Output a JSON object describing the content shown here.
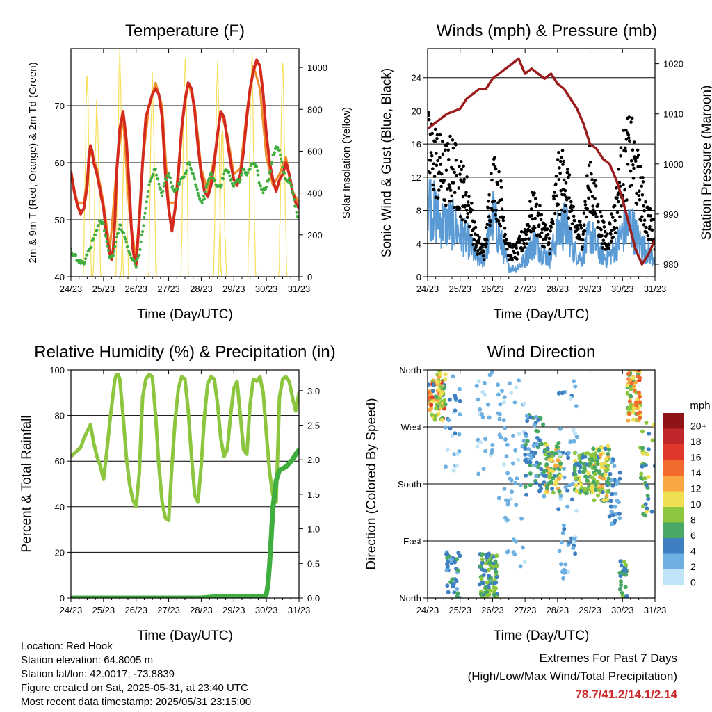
{
  "x_ticks": [
    "24/23",
    "25/23",
    "26/23",
    "27/23",
    "28/23",
    "29/23",
    "30/23",
    "31/23"
  ],
  "colors": {
    "red": "#d42a1e",
    "orange": "#f08a2a",
    "green": "#3fae3f",
    "yellow": "#f7df5a",
    "blue": "#5b9bd5",
    "black": "#000000",
    "maroon": "#9b1c1c",
    "rh_green": "#8cc63f",
    "precip_green": "#3fae3f"
  },
  "chart_data": [
    {
      "type": "line",
      "title": "Temperature (F)",
      "xlabel": "Time (Day/UTC)",
      "ylabel": "2m & 9m T (Red, Orange) & 2m Td (Green)",
      "ylabel_right": "Solar Insolation (Yellow)",
      "xlim": [
        0,
        7
      ],
      "ylim": [
        40,
        80
      ],
      "ylim_right": [
        0,
        1090
      ],
      "yticks": [
        40,
        50,
        60,
        70
      ],
      "yticks_right": [
        0,
        200,
        400,
        600,
        800,
        1000
      ],
      "series": [
        {
          "key": "t2m",
          "color": "red",
          "width": 4,
          "x": [
            0,
            0.1,
            0.2,
            0.3,
            0.4,
            0.5,
            0.55,
            0.6,
            0.65,
            0.7,
            0.8,
            0.9,
            1.0,
            1.1,
            1.2,
            1.25,
            1.3,
            1.35,
            1.4,
            1.5,
            1.6,
            1.7,
            1.8,
            1.85,
            1.9,
            1.95,
            2.0,
            2.1,
            2.2,
            2.3,
            2.4,
            2.5,
            2.6,
            2.7,
            2.8,
            2.9,
            3.0,
            3.1,
            3.2,
            3.3,
            3.4,
            3.5,
            3.6,
            3.7,
            3.8,
            3.9,
            4.0,
            4.1,
            4.2,
            4.3,
            4.4,
            4.5,
            4.6,
            4.7,
            4.8,
            4.9,
            5.0,
            5.1,
            5.2,
            5.3,
            5.4,
            5.5,
            5.6,
            5.7,
            5.8,
            5.9,
            6.0,
            6.1,
            6.2,
            6.3,
            6.4,
            6.5,
            6.6,
            6.7,
            6.8,
            6.9,
            7.0
          ],
          "y": [
            58.5,
            55,
            52.5,
            51,
            52,
            56,
            61,
            63,
            62,
            60,
            58,
            55,
            52,
            47,
            44,
            43,
            45,
            50,
            58,
            66,
            69,
            64,
            55,
            49,
            45,
            43,
            42,
            50,
            60,
            68,
            70,
            72,
            73,
            72,
            68,
            58,
            52,
            48,
            52,
            58,
            66,
            71,
            74,
            73,
            69,
            63,
            58,
            55,
            54,
            56,
            60,
            65,
            69,
            68,
            64,
            60,
            57,
            56,
            58,
            62,
            68,
            73,
            76,
            78,
            77,
            72,
            65,
            60,
            57,
            55,
            57,
            58,
            60,
            58,
            55,
            53,
            52
          ]
        },
        {
          "key": "t9m",
          "color": "orange",
          "width": 3,
          "x": [
            0,
            0.2,
            0.4,
            0.6,
            0.8,
            1.0,
            1.2,
            1.4,
            1.6,
            1.8,
            2.0,
            2.2,
            2.4,
            2.6,
            2.8,
            3.0,
            3.2,
            3.4,
            3.6,
            3.8,
            4.0,
            4.2,
            4.4,
            4.6,
            4.8,
            5.0,
            5.2,
            5.4,
            5.6,
            5.8,
            6.0,
            6.2,
            6.4,
            6.6,
            6.8,
            7.0
          ],
          "y": [
            58,
            53,
            53,
            62,
            59,
            53,
            45,
            59,
            68,
            51,
            43,
            60,
            70,
            74,
            70,
            53,
            53,
            66,
            74,
            70,
            59,
            55,
            61,
            69,
            65,
            58,
            59,
            69,
            77,
            73,
            61,
            56,
            58,
            61,
            55,
            53
          ]
        },
        {
          "key": "td2m",
          "color": "green",
          "width": 4,
          "style": "dots",
          "x": [
            0,
            0.2,
            0.4,
            0.5,
            0.6,
            0.7,
            0.8,
            0.9,
            1.0,
            1.1,
            1.2,
            1.3,
            1.4,
            1.5,
            1.6,
            1.7,
            1.8,
            1.9,
            2.0,
            2.1,
            2.2,
            2.3,
            2.4,
            2.5,
            2.6,
            2.7,
            2.8,
            2.9,
            3.0,
            3.1,
            3.2,
            3.3,
            3.4,
            3.5,
            3.6,
            3.7,
            3.8,
            3.9,
            4.0,
            4.1,
            4.2,
            4.3,
            4.4,
            4.5,
            4.6,
            4.7,
            4.8,
            4.9,
            5.0,
            5.1,
            5.2,
            5.3,
            5.4,
            5.5,
            5.6,
            5.7,
            5.8,
            5.9,
            6.0,
            6.1,
            6.2,
            6.3,
            6.4,
            6.5,
            6.6,
            6.7,
            6.8,
            6.9,
            7.0
          ],
          "y": [
            44.5,
            43,
            42,
            44,
            45,
            47,
            48,
            50,
            49,
            46,
            43,
            44,
            47,
            49,
            48,
            46,
            44,
            43,
            42,
            44,
            48,
            52,
            56,
            58,
            59,
            56,
            54,
            57,
            58,
            56,
            55,
            56,
            57,
            58,
            60,
            59,
            57,
            55,
            53,
            54,
            57,
            58,
            57,
            56,
            56,
            58,
            59,
            57,
            56,
            57,
            57,
            59,
            58,
            59,
            60,
            59,
            56,
            55,
            56,
            58,
            61,
            63,
            62,
            59,
            57,
            57,
            55,
            52,
            50
          ]
        },
        {
          "key": "solar",
          "color": "yellow",
          "width": 1.2,
          "axis": "right",
          "style": "spikes",
          "peaks": [
            {
              "x": 0.5,
              "y": 920
            },
            {
              "x": 0.8,
              "y": 820
            },
            {
              "x": 1.5,
              "y": 1050
            },
            {
              "x": 1.65,
              "y": 650
            },
            {
              "x": 2.5,
              "y": 900
            },
            {
              "x": 3.5,
              "y": 1030
            },
            {
              "x": 4.5,
              "y": 1000
            },
            {
              "x": 4.65,
              "y": 700
            },
            {
              "x": 5.55,
              "y": 1010
            },
            {
              "x": 6.5,
              "y": 1000
            }
          ]
        }
      ]
    },
    {
      "type": "scatter",
      "title": "Winds (mph) & Pressure (mb)",
      "xlabel": "Time (Day/UTC)",
      "ylabel": "Sonic Wind & Gust (Blue, Black)",
      "ylabel_right": "Station Pressure (Maroon)",
      "xlim": [
        0,
        7
      ],
      "ylim": [
        0,
        27.5
      ],
      "ylim_right": [
        977.5,
        1023
      ],
      "yticks": [
        0,
        4,
        8,
        12,
        16,
        20,
        24
      ],
      "yticks_right": [
        980,
        990,
        1000,
        1010,
        1020
      ],
      "wind_profile": {
        "x": [
          0,
          0.25,
          0.5,
          0.75,
          1.0,
          1.25,
          1.5,
          1.75,
          2.0,
          2.25,
          2.5,
          2.75,
          3.0,
          3.25,
          3.5,
          3.75,
          4.0,
          4.25,
          4.5,
          4.75,
          5.0,
          5.25,
          5.5,
          5.75,
          6.0,
          6.25,
          6.5,
          6.75,
          7.0
        ],
        "sustained": [
          9,
          7,
          6,
          6,
          5,
          4,
          2,
          2,
          7,
          4,
          1,
          1,
          2,
          4,
          3,
          2,
          5,
          6,
          3,
          2,
          5,
          3,
          2,
          3,
          5,
          6,
          4,
          3,
          2
        ],
        "gust": [
          15,
          14,
          12,
          13,
          11,
          9,
          4,
          3,
          12,
          9,
          3,
          3,
          5,
          8,
          6,
          4,
          11,
          12,
          6,
          5,
          12,
          7,
          4,
          7,
          13,
          15,
          11,
          7,
          5
        ]
      },
      "pressure": {
        "x": [
          0,
          0.2,
          0.4,
          0.6,
          0.8,
          1.0,
          1.2,
          1.4,
          1.6,
          1.8,
          2.0,
          2.2,
          2.4,
          2.6,
          2.8,
          3.0,
          3.2,
          3.4,
          3.6,
          3.8,
          4.0,
          4.2,
          4.4,
          4.6,
          4.8,
          5.0,
          5.2,
          5.4,
          5.6,
          5.8,
          6.0,
          6.2,
          6.4,
          6.6,
          6.8,
          7.0
        ],
        "y": [
          1007,
          1008,
          1009,
          1010,
          1010.5,
          1011,
          1013,
          1014,
          1015,
          1015,
          1017,
          1018,
          1019,
          1020,
          1021,
          1018,
          1019,
          1018,
          1017,
          1018,
          1016,
          1015,
          1013,
          1011,
          1008,
          1004,
          1003,
          1001,
          1000,
          997,
          993,
          988,
          983,
          980,
          982,
          985
        ]
      }
    },
    {
      "type": "line",
      "title": "Relative Humidity (%) & Precipitation (in)",
      "xlabel": "Time (Day/UTC)",
      "ylabel": "Percent & Total Rainfall",
      "xlim": [
        0,
        7
      ],
      "ylim": [
        0,
        100
      ],
      "ylim_right": [
        0,
        3.3
      ],
      "yticks": [
        0,
        20,
        40,
        60,
        80,
        100
      ],
      "yticks_right": [
        "0.0",
        "0.5",
        "1.0",
        "1.5",
        "2.0",
        "2.5",
        "3.0"
      ],
      "series": [
        {
          "key": "rh",
          "color": "rh_green",
          "width": 5,
          "x": [
            0,
            0.15,
            0.3,
            0.4,
            0.5,
            0.6,
            0.7,
            0.8,
            0.9,
            1.0,
            1.1,
            1.2,
            1.3,
            1.35,
            1.4,
            1.45,
            1.5,
            1.6,
            1.7,
            1.8,
            1.9,
            2.0,
            2.1,
            2.15,
            2.2,
            2.3,
            2.4,
            2.5,
            2.6,
            2.7,
            2.8,
            2.9,
            3.0,
            3.1,
            3.2,
            3.3,
            3.4,
            3.5,
            3.6,
            3.7,
            3.8,
            3.9,
            4.0,
            4.1,
            4.2,
            4.3,
            4.4,
            4.5,
            4.6,
            4.7,
            4.8,
            4.9,
            5.0,
            5.1,
            5.2,
            5.3,
            5.4,
            5.5,
            5.6,
            5.7,
            5.8,
            5.9,
            6.0,
            6.1,
            6.2,
            6.3,
            6.4,
            6.5,
            6.6,
            6.7,
            6.8,
            6.9,
            7.0
          ],
          "y": [
            62,
            64,
            66,
            70,
            73,
            76,
            68,
            62,
            58,
            52,
            64,
            78,
            90,
            96,
            98,
            98,
            96,
            80,
            62,
            50,
            43,
            40,
            55,
            72,
            88,
            96,
            98,
            97,
            80,
            58,
            42,
            35,
            34,
            58,
            78,
            92,
            97,
            96,
            82,
            62,
            45,
            42,
            58,
            80,
            94,
            97,
            96,
            85,
            70,
            62,
            65,
            80,
            92,
            95,
            80,
            65,
            63,
            85,
            96,
            95,
            97,
            90,
            72,
            55,
            45,
            42,
            88,
            96,
            97,
            95,
            88,
            82,
            90
          ]
        },
        {
          "key": "precip",
          "color": "precip_green",
          "width": 7,
          "axis": "right",
          "x": [
            0,
            1,
            2,
            3,
            4,
            4.5,
            5,
            5.5,
            5.9,
            6.0,
            6.05,
            6.1,
            6.15,
            6.2,
            6.3,
            6.4,
            6.45,
            6.5,
            6.6,
            6.7,
            6.8,
            6.9,
            7.0
          ],
          "y": [
            0,
            0,
            0,
            0,
            0,
            0.02,
            0.02,
            0.02,
            0.02,
            0.05,
            0.2,
            0.5,
            0.9,
            1.3,
            1.7,
            1.85,
            1.86,
            1.87,
            1.9,
            1.95,
            2.0,
            2.08,
            2.14
          ]
        }
      ]
    },
    {
      "type": "scatter",
      "title": "Wind Direction",
      "xlabel": "Time (Day/UTC)",
      "ylabel": "Direction (Colored By Speed)",
      "xlim": [
        0,
        7
      ],
      "ylim": [
        0,
        360
      ],
      "ytick_labels": [
        "North",
        "East",
        "South",
        "West",
        "North"
      ],
      "ytick_values": [
        0,
        90,
        180,
        270,
        360
      ],
      "colorbar": {
        "unit": "mph",
        "labels": [
          "20+",
          "18",
          "16",
          "14",
          "12",
          "10",
          "8",
          "6",
          "4",
          "2",
          "0"
        ],
        "colors": [
          "#8e1418",
          "#c0272d",
          "#e2382b",
          "#f26a2d",
          "#f9a743",
          "#f0df52",
          "#8dc63f",
          "#4aa865",
          "#3d7fc1",
          "#6eb0e2",
          "#bfe3f7"
        ]
      },
      "clusters": [
        {
          "x0": 0.0,
          "x1": 0.55,
          "dir0": 280,
          "dir1": 345,
          "spd0": 4,
          "spd1": 16,
          "n": 70
        },
        {
          "x0": 0.3,
          "x1": 0.55,
          "dir0": 300,
          "dir1": 360,
          "spd0": 6,
          "spd1": 12,
          "n": 30
        },
        {
          "x0": 0.55,
          "x1": 1.0,
          "dir0": 0,
          "dir1": 80,
          "spd0": 2,
          "spd1": 6,
          "n": 40
        },
        {
          "x0": 0.55,
          "x1": 1.0,
          "dir0": 200,
          "dir1": 350,
          "spd0": 0,
          "spd1": 4,
          "n": 25
        },
        {
          "x0": 1.6,
          "x1": 2.15,
          "dir0": 0,
          "dir1": 70,
          "spd0": 3,
          "spd1": 9,
          "n": 90
        },
        {
          "x0": 1.5,
          "x1": 2.0,
          "dir0": 180,
          "dir1": 360,
          "spd0": 0,
          "spd1": 3,
          "n": 25
        },
        {
          "x0": 2.15,
          "x1": 3.0,
          "dir0": 40,
          "dir1": 350,
          "spd0": 0,
          "spd1": 3,
          "n": 60
        },
        {
          "x0": 3.0,
          "x1": 3.6,
          "dir0": 160,
          "dir1": 290,
          "spd0": 2,
          "spd1": 6,
          "n": 70
        },
        {
          "x0": 3.6,
          "x1": 4.1,
          "dir0": 165,
          "dir1": 245,
          "spd0": 4,
          "spd1": 12,
          "n": 80
        },
        {
          "x0": 4.0,
          "x1": 4.6,
          "dir0": 30,
          "dir1": 360,
          "spd0": 0,
          "spd1": 4,
          "n": 60
        },
        {
          "x0": 4.5,
          "x1": 5.1,
          "dir0": 160,
          "dir1": 230,
          "spd0": 4,
          "spd1": 10,
          "n": 80
        },
        {
          "x0": 5.1,
          "x1": 5.6,
          "dir0": 150,
          "dir1": 240,
          "spd0": 4,
          "spd1": 12,
          "n": 90
        },
        {
          "x0": 5.6,
          "x1": 5.95,
          "dir0": 110,
          "dir1": 220,
          "spd0": 2,
          "spd1": 5,
          "n": 30
        },
        {
          "x0": 5.9,
          "x1": 6.15,
          "dir0": 0,
          "dir1": 60,
          "spd0": 3,
          "spd1": 8,
          "n": 25
        },
        {
          "x0": 6.15,
          "x1": 6.55,
          "dir0": 280,
          "dir1": 360,
          "spd0": 6,
          "spd1": 16,
          "n": 80
        },
        {
          "x0": 6.55,
          "x1": 7.0,
          "dir0": 130,
          "dir1": 280,
          "spd0": 3,
          "spd1": 10,
          "n": 35
        }
      ]
    }
  ],
  "footer": {
    "location": "Location: Red Hook",
    "elevation": "Station elevation: 64.8005 m",
    "latlon": "Station lat/lon: 42.0017; -73.8839",
    "created": "Figure created on Sat, 2025-05-31, at 23:40 UTC",
    "recent": "Most recent data timestamp: 2025/05/31 23:15:00"
  },
  "extremes": {
    "heading": "Extremes For Past 7 Days",
    "subheading": "(High/Low/Max Wind/Total Precipitation)",
    "values": "78.7/41.2/14.1/2.14"
  }
}
